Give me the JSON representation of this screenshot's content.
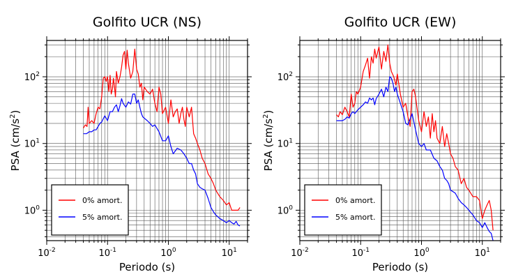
{
  "chart_data": [
    {
      "type": "line",
      "title": "Golfito UCR (NS)",
      "xlabel": "Periodo (s)",
      "ylabel_main": "PSA (cm/s",
      "ylabel_sup": "2",
      "ylabel_close": ")",
      "x_scale": "log",
      "y_scale": "log",
      "xlim": [
        0.01,
        20
      ],
      "ylim": [
        0.35,
        350
      ],
      "grid": true,
      "legend_position": "bottom-left",
      "x_ticks": [
        {
          "base": "10",
          "exp": "-2"
        },
        {
          "base": "10",
          "exp": "-1"
        },
        {
          "base": "10",
          "exp": "0"
        },
        {
          "base": "10",
          "exp": "1"
        }
      ],
      "y_ticks": [
        {
          "base": "10",
          "exp": "0"
        },
        {
          "base": "10",
          "exp": "1"
        },
        {
          "base": "10",
          "exp": "2"
        }
      ],
      "series": [
        {
          "name": "0% amort.",
          "color": "#ff0000",
          "x": [
            0.04,
            0.043,
            0.046,
            0.048,
            0.05,
            0.055,
            0.06,
            0.065,
            0.07,
            0.075,
            0.08,
            0.085,
            0.09,
            0.095,
            0.1,
            0.105,
            0.11,
            0.115,
            0.12,
            0.125,
            0.13,
            0.135,
            0.14,
            0.15,
            0.16,
            0.17,
            0.18,
            0.19,
            0.2,
            0.21,
            0.22,
            0.24,
            0.26,
            0.28,
            0.3,
            0.32,
            0.34,
            0.36,
            0.38,
            0.4,
            0.45,
            0.5,
            0.55,
            0.6,
            0.65,
            0.7,
            0.75,
            0.8,
            0.9,
            1.0,
            1.1,
            1.2,
            1.3,
            1.4,
            1.5,
            1.6,
            1.7,
            1.8,
            1.9,
            2.0,
            2.2,
            2.4,
            2.6,
            2.8,
            3.0,
            3.3,
            3.6,
            4.0,
            4.5,
            5.0,
            5.5,
            6.0,
            7.0,
            8.0,
            9.0,
            10.0,
            11.0,
            12.0,
            13.0,
            14.0,
            15.0
          ],
          "y": [
            17,
            19,
            18,
            35,
            20,
            22,
            20,
            28,
            35,
            33,
            50,
            95,
            100,
            85,
            100,
            60,
            105,
            55,
            65,
            95,
            70,
            50,
            120,
            80,
            100,
            140,
            210,
            240,
            130,
            250,
            160,
            95,
            120,
            260,
            130,
            110,
            70,
            80,
            45,
            70,
            60,
            55,
            65,
            40,
            30,
            70,
            55,
            28,
            35,
            20,
            45,
            25,
            30,
            33,
            20,
            28,
            35,
            23,
            18,
            35,
            25,
            35,
            14,
            12,
            10,
            8,
            6,
            5,
            3.5,
            3,
            2.5,
            2,
            1.6,
            1.4,
            1.2,
            1.3,
            1.0,
            1.0,
            1.0,
            1.0,
            1.1
          ]
        },
        {
          "name": "5% amort.",
          "color": "#0000ff",
          "x": [
            0.04,
            0.045,
            0.05,
            0.055,
            0.06,
            0.065,
            0.07,
            0.075,
            0.08,
            0.09,
            0.1,
            0.11,
            0.12,
            0.13,
            0.14,
            0.15,
            0.16,
            0.17,
            0.18,
            0.2,
            0.22,
            0.24,
            0.26,
            0.28,
            0.3,
            0.32,
            0.34,
            0.36,
            0.38,
            0.4,
            0.45,
            0.5,
            0.55,
            0.6,
            0.7,
            0.8,
            0.9,
            1.0,
            1.1,
            1.2,
            1.4,
            1.6,
            1.8,
            2.0,
            2.2,
            2.4,
            2.6,
            2.8,
            3.0,
            3.3,
            3.6,
            4.0,
            4.5,
            5.0,
            5.5,
            6.0,
            7.0,
            8.0,
            9.0,
            10.0,
            11.0,
            12.0,
            13.0,
            14.0,
            15.0
          ],
          "y": [
            14,
            14,
            15,
            15,
            16,
            16,
            18,
            20,
            21,
            26,
            22,
            30,
            30,
            35,
            38,
            30,
            37,
            47,
            40,
            35,
            42,
            39,
            55,
            55,
            40,
            45,
            35,
            28,
            25,
            24,
            22,
            20,
            18,
            19,
            15,
            11,
            11,
            13,
            9,
            7,
            8.5,
            8,
            7,
            6,
            5,
            5,
            4,
            3.5,
            2.5,
            2.2,
            2.1,
            2.0,
            1.5,
            1.1,
            0.95,
            0.85,
            0.75,
            0.7,
            0.65,
            0.7,
            0.65,
            0.62,
            0.68,
            0.6,
            0.58
          ]
        }
      ]
    },
    {
      "type": "line",
      "title": "Golfito UCR (EW)",
      "xlabel": "Periodo (s)",
      "ylabel_main": "PSA (cm/s",
      "ylabel_sup": "2",
      "ylabel_close": ")",
      "x_scale": "log",
      "y_scale": "log",
      "xlim": [
        0.01,
        20
      ],
      "ylim": [
        0.35,
        350
      ],
      "grid": true,
      "legend_position": "bottom-left",
      "x_ticks": [
        {
          "base": "10",
          "exp": "-2"
        },
        {
          "base": "10",
          "exp": "-1"
        },
        {
          "base": "10",
          "exp": "0"
        },
        {
          "base": "10",
          "exp": "1"
        }
      ],
      "y_ticks": [
        {
          "base": "10",
          "exp": "0"
        },
        {
          "base": "10",
          "exp": "1"
        },
        {
          "base": "10",
          "exp": "2"
        }
      ],
      "series": [
        {
          "name": "0% amort.",
          "color": "#ff0000",
          "x": [
            0.04,
            0.043,
            0.046,
            0.05,
            0.055,
            0.06,
            0.065,
            0.07,
            0.075,
            0.08,
            0.085,
            0.09,
            0.1,
            0.11,
            0.12,
            0.13,
            0.14,
            0.15,
            0.16,
            0.17,
            0.18,
            0.2,
            0.22,
            0.24,
            0.26,
            0.28,
            0.3,
            0.32,
            0.35,
            0.38,
            0.4,
            0.45,
            0.5,
            0.55,
            0.6,
            0.65,
            0.7,
            0.75,
            0.8,
            0.9,
            1.0,
            1.1,
            1.2,
            1.3,
            1.4,
            1.5,
            1.6,
            1.7,
            1.8,
            2.0,
            2.2,
            2.4,
            2.6,
            2.8,
            3.0,
            3.3,
            3.6,
            4.0,
            4.5,
            5.0,
            5.5,
            6.0,
            7.0,
            8.0,
            9.0,
            10.0,
            11.0,
            12.0,
            13.0,
            14.0,
            15.0
          ],
          "y": [
            27,
            25,
            30,
            27,
            35,
            30,
            25,
            55,
            35,
            40,
            60,
            55,
            70,
            120,
            150,
            190,
            95,
            200,
            160,
            260,
            190,
            280,
            130,
            240,
            170,
            300,
            160,
            120,
            100,
            75,
            110,
            55,
            35,
            40,
            25,
            18,
            60,
            65,
            50,
            22,
            15,
            30,
            18,
            25,
            12,
            28,
            15,
            22,
            12,
            10,
            18,
            9,
            14,
            10,
            7,
            6,
            4.5,
            4,
            2.5,
            3,
            2.2,
            2.0,
            1.6,
            1.6,
            1.4,
            0.75,
            1.0,
            1.2,
            1.4,
            1.0,
            0.5
          ]
        },
        {
          "name": "5% amort.",
          "color": "#0000ff",
          "x": [
            0.04,
            0.045,
            0.05,
            0.055,
            0.06,
            0.065,
            0.07,
            0.075,
            0.08,
            0.09,
            0.1,
            0.11,
            0.12,
            0.13,
            0.14,
            0.15,
            0.16,
            0.17,
            0.18,
            0.2,
            0.22,
            0.24,
            0.26,
            0.28,
            0.3,
            0.32,
            0.34,
            0.36,
            0.38,
            0.4,
            0.45,
            0.5,
            0.55,
            0.6,
            0.7,
            0.8,
            0.9,
            1.0,
            1.1,
            1.2,
            1.4,
            1.6,
            1.8,
            2.0,
            2.2,
            2.4,
            2.6,
            2.8,
            3.0,
            3.3,
            3.6,
            4.0,
            4.5,
            5.0,
            5.5,
            6.0,
            7.0,
            8.0,
            9.0,
            10.0,
            11.0,
            12.0,
            13.0,
            14.0,
            15.0
          ],
          "y": [
            22,
            22,
            22,
            23,
            25,
            24,
            28,
            30,
            28,
            32,
            35,
            38,
            42,
            40,
            48,
            45,
            48,
            38,
            47,
            55,
            65,
            50,
            70,
            60,
            100,
            95,
            80,
            60,
            70,
            55,
            40,
            30,
            20,
            19,
            28,
            16,
            10,
            9,
            10,
            8,
            8,
            6,
            5.5,
            4.5,
            4,
            3,
            2.8,
            2.5,
            2.0,
            1.9,
            1.8,
            1.5,
            1.3,
            1.2,
            1.1,
            1.0,
            0.85,
            0.7,
            0.65,
            0.55,
            0.65,
            0.55,
            0.48,
            0.45,
            0.35
          ]
        }
      ]
    }
  ]
}
